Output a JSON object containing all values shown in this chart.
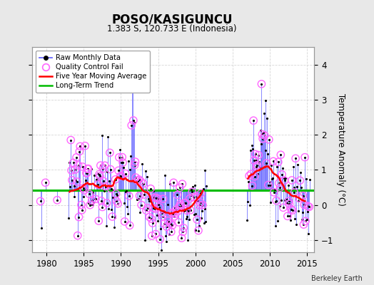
{
  "title": "POSO/KASIGUNCU",
  "subtitle": "1.383 S, 120.733 E (Indonesia)",
  "ylabel": "Temperature Anomaly (°C)",
  "credit": "Berkeley Earth",
  "xlim": [
    1978,
    2016
  ],
  "ylim": [
    -1.35,
    4.5
  ],
  "yticks": [
    -1,
    0,
    1,
    2,
    3,
    4
  ],
  "xticks": [
    1980,
    1985,
    1990,
    1995,
    2000,
    2005,
    2010,
    2015
  ],
  "long_term_trend_y": 0.42,
  "bg_color": "#e8e8e8",
  "plot_bg_color": "#ffffff",
  "raw_line_color": "#6666ff",
  "raw_dot_color": "#000000",
  "qc_fail_color": "#ff66ff",
  "moving_avg_color": "#ff0000",
  "trend_color": "#00bb00",
  "grid_color": "#cccccc"
}
